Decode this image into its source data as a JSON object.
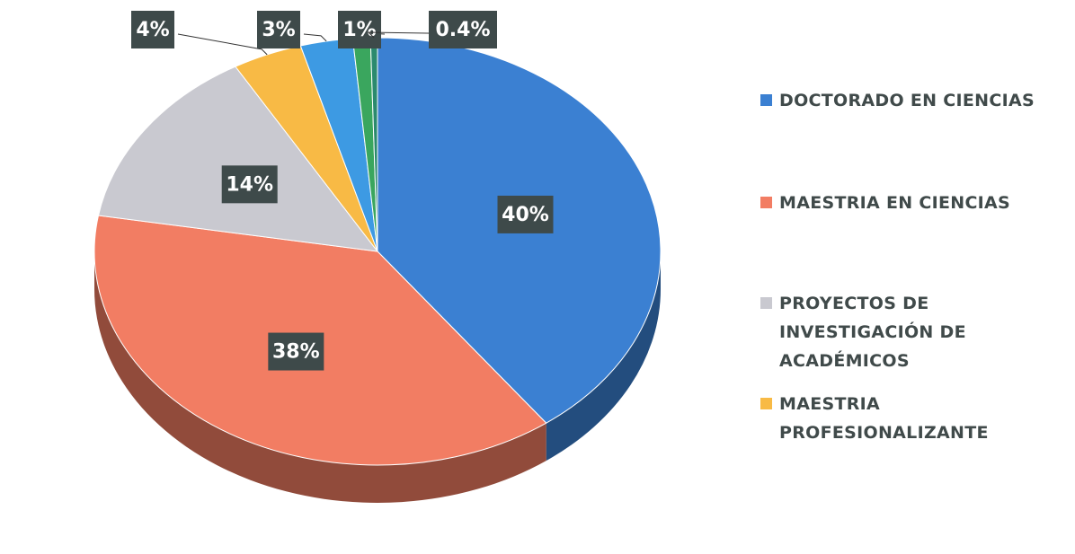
{
  "chart_data": {
    "type": "pie",
    "categories": [
      "DOCTORADO EN CIENCIAS",
      "MAESTRIA EN CIENCIAS",
      "PROYECTOS DE INVESTIGACIÓN DE ACADÉMICOS",
      "MAESTRIA PROFESIONALIZANTE",
      null,
      null,
      null
    ],
    "values": [
      40,
      38,
      14,
      4,
      3,
      1,
      0.4
    ],
    "value_labels": [
      "40%",
      "38%",
      "14%",
      "4%",
      "3%",
      "1%",
      "0.4%"
    ],
    "colors": [
      "#3b80d2",
      "#f27d63",
      "#c9c9d0",
      "#f8ba45",
      "#3d9ae3",
      "#3aa65e",
      "#2b8a6e"
    ],
    "legend": "right"
  }
}
